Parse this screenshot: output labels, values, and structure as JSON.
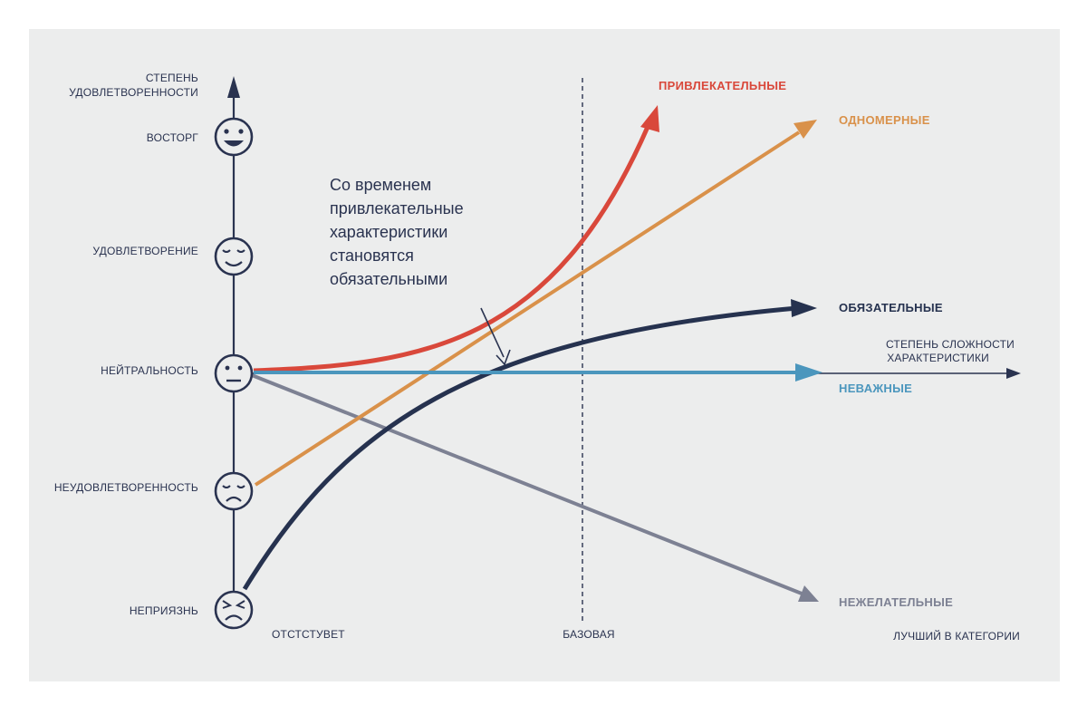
{
  "vertical_axis": {
    "title_lines": [
      "СТЕПЕНЬ",
      "УДОВЛЕТВОРЕННОСТИ"
    ],
    "levels": [
      {
        "label": "ВОСТОРГ",
        "face": "delighted-face-icon"
      },
      {
        "label": "УДОВЛЕТВОРЕНИЕ",
        "face": "content-face-icon"
      },
      {
        "label": "НЕЙТРАЛЬНОСТЬ",
        "face": "neutral-face-icon"
      },
      {
        "label": "НЕУДОВЛЕТВОРЕННОСТЬ",
        "face": "sad-face-icon"
      },
      {
        "label": "НЕПРИЯЗНЬ",
        "face": "angry-face-icon"
      }
    ]
  },
  "horizontal_axis": {
    "title_lines": [
      "СТЕПЕНЬ СЛОЖНОСТИ",
      "ХАРАКТЕРИСТИКИ"
    ],
    "ticks": [
      "ОТСТСТУВЕТ",
      "БАЗОВАЯ",
      "ЛУЧШИЙ В КАТЕГОРИИ"
    ]
  },
  "categories": [
    {
      "key": "attractive",
      "label": "ПРИВЛЕКАТЕЛЬНЫЕ",
      "color": "#d9483b"
    },
    {
      "key": "one_dimensional",
      "label": "ОДНОМЕРНЫЕ",
      "color": "#d9914a"
    },
    {
      "key": "must_be",
      "label": "ОБЯЗАТЕЛЬНЫЕ",
      "color": "#26324f"
    },
    {
      "key": "indifferent",
      "label": "НЕВАЖНЫЕ",
      "color": "#4b96bd"
    },
    {
      "key": "reverse",
      "label": "НЕЖЕЛАТЕЛЬНЫЕ",
      "color": "#7d8193"
    }
  ],
  "annotation_lines": [
    "Со временем",
    "привлекательные",
    "характеристики",
    "становятся",
    "обязательными"
  ],
  "colors": {
    "background": "#eceded",
    "ink": "#2a3350"
  }
}
